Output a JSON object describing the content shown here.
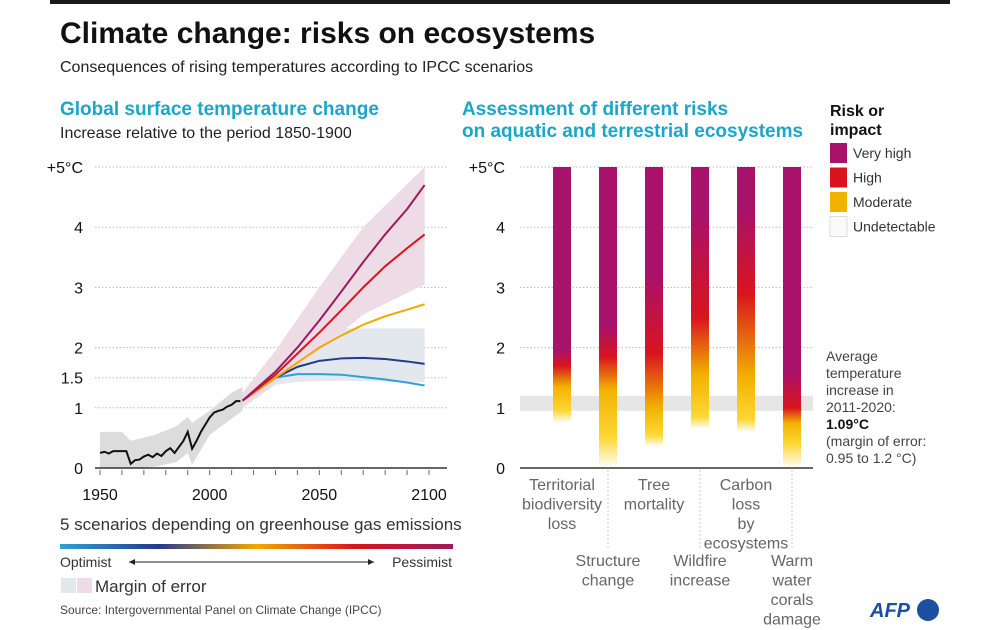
{
  "header": {
    "title": "Climate change: risks on ecosystems",
    "subtitle": "Consequences of rising temperatures according to IPCC scenarios"
  },
  "colors": {
    "accent": "#1ba6c9",
    "very_high": "#a8126a",
    "high": "#d9141e",
    "moderate": "#f2b200",
    "moderate_light": "#fdd835",
    "undetectable": "#ffffff",
    "band_pink": "#eddbe6",
    "band_blue": "#e3e8ee",
    "band_grey": "#dcdcdc",
    "afp": "#1c4fa0"
  },
  "chart_data": [
    {
      "type": "line",
      "title": "Global surface temperature change",
      "subtitle": "Increase relative to the period 1850-1900",
      "xlim": [
        1950,
        2100
      ],
      "ylim": [
        0,
        5
      ],
      "x_ticks": [
        "1950",
        "2000",
        "2050",
        "2100"
      ],
      "y_ticks": [
        {
          "value": 0,
          "label": "0"
        },
        {
          "value": 1,
          "label": "1"
        },
        {
          "value": 1.5,
          "label": "1.5"
        },
        {
          "value": 2,
          "label": "2"
        },
        {
          "value": 3,
          "label": "3"
        },
        {
          "value": 4,
          "label": "4"
        },
        {
          "value": 5,
          "label": "+5°C"
        }
      ],
      "grid": true,
      "historical": {
        "x": [
          1950,
          1952,
          1954,
          1956,
          1958,
          1960,
          1962,
          1964,
          1966,
          1968,
          1970,
          1972,
          1974,
          1976,
          1978,
          1980,
          1982,
          1984,
          1986,
          1988,
          1990,
          1992,
          1994,
          1996,
          1998,
          2000,
          2002,
          2004,
          2006,
          2008,
          2010,
          2012,
          2014
        ],
        "y": [
          0.25,
          0.27,
          0.24,
          0.28,
          0.28,
          0.28,
          0.28,
          0.07,
          0.13,
          0.14,
          0.19,
          0.22,
          0.18,
          0.24,
          0.2,
          0.28,
          0.33,
          0.25,
          0.35,
          0.45,
          0.6,
          0.32,
          0.45,
          0.6,
          0.72,
          0.84,
          0.92,
          0.95,
          0.97,
          1.02,
          1.05,
          1.11,
          1.11
        ]
      },
      "historical_band": {
        "x": [
          1950,
          1960,
          1964,
          1975,
          1985,
          1990,
          1992,
          2000,
          2010,
          2015
        ],
        "low": [
          0,
          0,
          0,
          0.02,
          0.1,
          0.25,
          0.05,
          0.55,
          0.82,
          0.95
        ],
        "high": [
          0.6,
          0.6,
          0.45,
          0.55,
          0.7,
          0.85,
          0.75,
          0.95,
          1.25,
          1.35
        ]
      },
      "scenario_x": [
        2015,
        2030,
        2040,
        2050,
        2060,
        2070,
        2080,
        2090,
        2098
      ],
      "series": [
        {
          "color": "#2fa0d8",
          "values": [
            1.12,
            1.5,
            1.56,
            1.56,
            1.55,
            1.51,
            1.47,
            1.42,
            1.37
          ]
        },
        {
          "color": "#233a8e",
          "values": [
            1.12,
            1.5,
            1.68,
            1.78,
            1.82,
            1.83,
            1.81,
            1.77,
            1.73
          ]
        },
        {
          "color": "#f2a900",
          "values": [
            1.12,
            1.5,
            1.75,
            2.0,
            2.2,
            2.38,
            2.52,
            2.63,
            2.72
          ]
        },
        {
          "color": "#d9141e",
          "values": [
            1.12,
            1.55,
            1.9,
            2.25,
            2.62,
            3.0,
            3.35,
            3.65,
            3.88
          ]
        },
        {
          "color": "#9b1b5d",
          "values": [
            1.12,
            1.6,
            2.0,
            2.45,
            2.93,
            3.42,
            3.88,
            4.3,
            4.7
          ]
        }
      ],
      "bands": [
        {
          "color": "#e3e8ee",
          "x": [
            2015,
            2030,
            2040,
            2050,
            2060,
            2098
          ],
          "low": [
            1.0,
            1.38,
            1.43,
            1.44,
            1.45,
            1.42
          ],
          "high": [
            1.2,
            1.7,
            1.95,
            2.2,
            2.32,
            2.32
          ]
        },
        {
          "color": "#eddbe6",
          "x": [
            2015,
            2030,
            2050,
            2070,
            2098
          ],
          "low": [
            1.0,
            1.4,
            1.95,
            2.55,
            3.05
          ],
          "high": [
            1.25,
            1.95,
            3.0,
            4.0,
            5.0
          ]
        }
      ],
      "scale_label": "5 scenarios depending on greenhouse gas emissions",
      "scale_left": "Optimist",
      "scale_right": "Pessimist",
      "margin_label": "Margin of error"
    },
    {
      "type": "bar",
      "title_line1": "Assessment of different risks",
      "title_line2": "on aquatic and terrestrial ecosystems",
      "ylim": [
        0,
        5
      ],
      "y_ticks": [
        {
          "value": 0,
          "label": "0"
        },
        {
          "value": 1,
          "label": "1"
        },
        {
          "value": 2,
          "label": "2"
        },
        {
          "value": 3,
          "label": "3"
        },
        {
          "value": 4,
          "label": "4"
        },
        {
          "value": 5,
          "label": "+5°C"
        }
      ],
      "observed_band": [
        0.95,
        1.2
      ],
      "categories": [
        {
          "lines": [
            "Territorial",
            "biodiversity",
            "loss"
          ],
          "stops": [
            [
              0.1,
              "undetectable"
            ],
            [
              0.75,
              "undetectable"
            ],
            [
              0.95,
              "moderate_light"
            ],
            [
              1.35,
              "moderate"
            ],
            [
              1.7,
              "high"
            ],
            [
              1.95,
              "very_high"
            ],
            [
              5,
              "very_high"
            ]
          ]
        },
        {
          "lines": [
            "Structure",
            "change"
          ],
          "stops": [
            [
              0,
              "undetectable"
            ],
            [
              0.5,
              "moderate_light"
            ],
            [
              1.3,
              "moderate"
            ],
            [
              1.85,
              "high"
            ],
            [
              2.35,
              "very_high"
            ],
            [
              5,
              "very_high"
            ]
          ]
        },
        {
          "lines": [
            "Tree",
            "mortality"
          ],
          "stops": [
            [
              0.35,
              "undetectable"
            ],
            [
              0.55,
              "moderate_light"
            ],
            [
              1.0,
              "moderate"
            ],
            [
              1.9,
              "high"
            ],
            [
              3.2,
              "very_high"
            ],
            [
              5,
              "very_high"
            ]
          ]
        },
        {
          "lines": [
            "Wildfire",
            "increase"
          ],
          "stops": [
            [
              0.65,
              "undetectable"
            ],
            [
              0.85,
              "moderate_light"
            ],
            [
              1.55,
              "moderate"
            ],
            [
              2.5,
              "high"
            ],
            [
              4.2,
              "very_high"
            ],
            [
              5,
              "very_high"
            ]
          ]
        },
        {
          "lines": [
            "Carbon",
            "loss",
            "by",
            "ecosystems"
          ],
          "stops": [
            [
              0.6,
              "undetectable"
            ],
            [
              0.8,
              "moderate_light"
            ],
            [
              1.5,
              "moderate"
            ],
            [
              2.9,
              "high"
            ],
            [
              4.3,
              "very_high"
            ],
            [
              5,
              "very_high"
            ]
          ]
        },
        {
          "lines": [
            "Warm",
            "water",
            "corals",
            "damage"
          ],
          "stops": [
            [
              0,
              "undetectable"
            ],
            [
              0.4,
              "moderate_light"
            ],
            [
              0.75,
              "moderate"
            ],
            [
              1.0,
              "high"
            ],
            [
              1.6,
              "very_high"
            ],
            [
              5,
              "very_high"
            ]
          ]
        }
      ]
    }
  ],
  "legend": {
    "title_line1": "Risk or",
    "title_line2": "impact",
    "items": [
      {
        "label": "Very high",
        "level": "very_high"
      },
      {
        "label": "High",
        "level": "high"
      },
      {
        "label": "Moderate",
        "level": "moderate"
      },
      {
        "label": "Undetectable",
        "level": "undetectable"
      }
    ]
  },
  "note": {
    "lines": [
      "Average",
      "temperature",
      "increase in",
      "2011-2020:"
    ],
    "value": "1.09°C",
    "margin_lines": [
      "(margin of error:",
      "0.95 to 1.2 °C)"
    ]
  },
  "footer": {
    "source": "Source: Intergovernmental Panel on Climate Change (IPCC)",
    "logo": "AFP"
  }
}
